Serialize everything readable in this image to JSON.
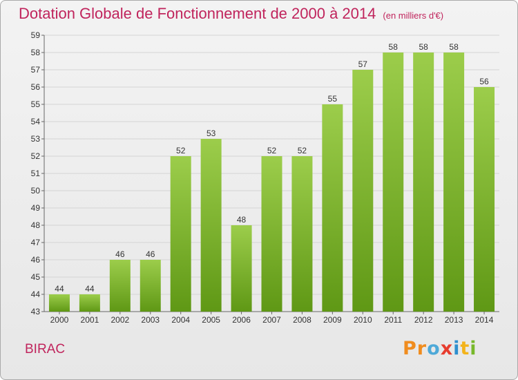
{
  "header": {
    "title": "Dotation Globale de Fonctionnement de 2000 à 2014",
    "unit": "(en milliers d'€)"
  },
  "footer": {
    "commune": "BIRAC",
    "logo": [
      "P",
      "r",
      "o",
      "x",
      "i",
      "t",
      "i"
    ],
    "logo_colors": [
      "#f08c1e",
      "#f08c1e",
      "#4ea9d8",
      "#e73c2e",
      "#2f8fce",
      "#f3b31b",
      "#77b82a"
    ]
  },
  "colors": {
    "bar_top": "#9ccd4b",
    "bar_bottom": "#5f9815",
    "text": "#c0245c"
  },
  "chart_data": {
    "type": "bar",
    "title": "Dotation Globale de Fonctionnement de 2000 à 2014",
    "subtitle": "(en milliers d'€)",
    "categories": [
      "2000",
      "2001",
      "2002",
      "2003",
      "2004",
      "2005",
      "2006",
      "2007",
      "2008",
      "2009",
      "2010",
      "2011",
      "2012",
      "2013",
      "2014"
    ],
    "values": [
      44,
      44,
      46,
      46,
      52,
      53,
      48,
      52,
      52,
      55,
      57,
      58,
      58,
      58,
      56
    ],
    "ylim": [
      43,
      59
    ],
    "yticks": [
      43,
      44,
      45,
      46,
      47,
      48,
      49,
      50,
      51,
      52,
      53,
      54,
      55,
      56,
      57,
      58,
      59
    ],
    "grid": true,
    "legend": "none"
  }
}
